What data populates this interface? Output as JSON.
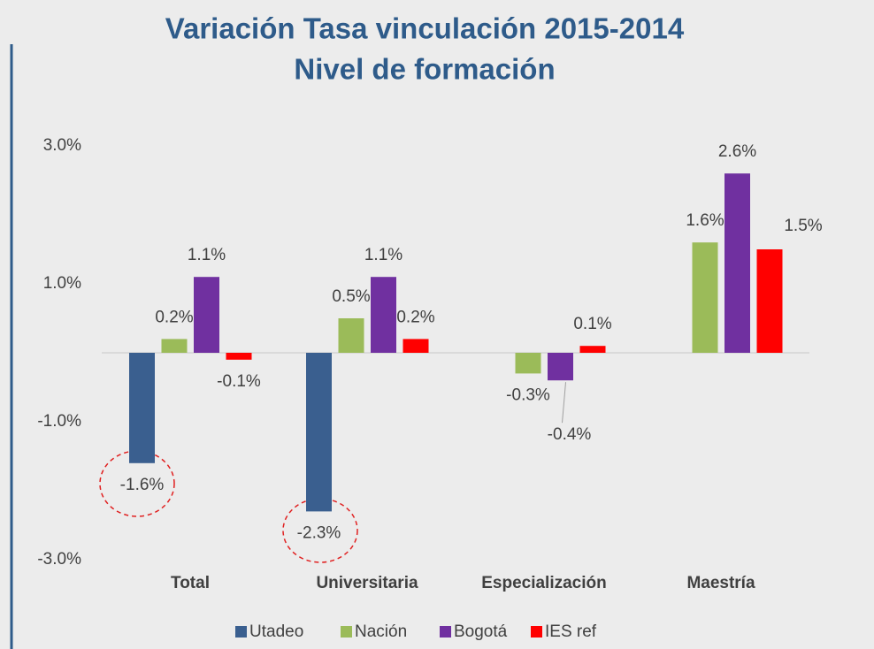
{
  "chart_data": {
    "type": "bar",
    "title": "Variación Tasa vinculación 2015-2014",
    "subtitle": "Nivel de formación",
    "categories": [
      "Total",
      "Universitaria",
      "Especialización",
      "Maestría"
    ],
    "series": [
      {
        "name": "Utadeo",
        "color": "#3a5f8f",
        "values": [
          -1.6,
          -2.3,
          null,
          null
        ],
        "value_labels": [
          "-1.6%",
          "-2.3%",
          null,
          null
        ]
      },
      {
        "name": "Nación",
        "color": "#9bbb59",
        "values": [
          0.2,
          0.5,
          -0.3,
          1.6
        ],
        "value_labels": [
          "0.2%",
          "0.5%",
          "-0.3%",
          "1.6%"
        ]
      },
      {
        "name": "Bogotá",
        "color": "#7030a0",
        "values": [
          1.1,
          1.1,
          -0.4,
          2.6
        ],
        "value_labels": [
          "1.1%",
          "1.1%",
          "-0.4%",
          "2.6%"
        ]
      },
      {
        "name": "IES ref",
        "color": "#ff0000",
        "values": [
          -0.1,
          0.2,
          0.1,
          1.5
        ],
        "value_labels": [
          "-0.1%",
          "0.2%",
          "0.1%",
          "1.5%"
        ]
      }
    ],
    "ylim": [
      -3,
      3
    ],
    "yticks": [
      {
        "value": -3,
        "label": "-3.0%"
      },
      {
        "value": -1,
        "label": "-1.0%"
      },
      {
        "value": 1,
        "label": "1.0%"
      },
      {
        "value": 3,
        "label": "3.0%"
      }
    ],
    "grid": false,
    "legend": "bottom"
  }
}
